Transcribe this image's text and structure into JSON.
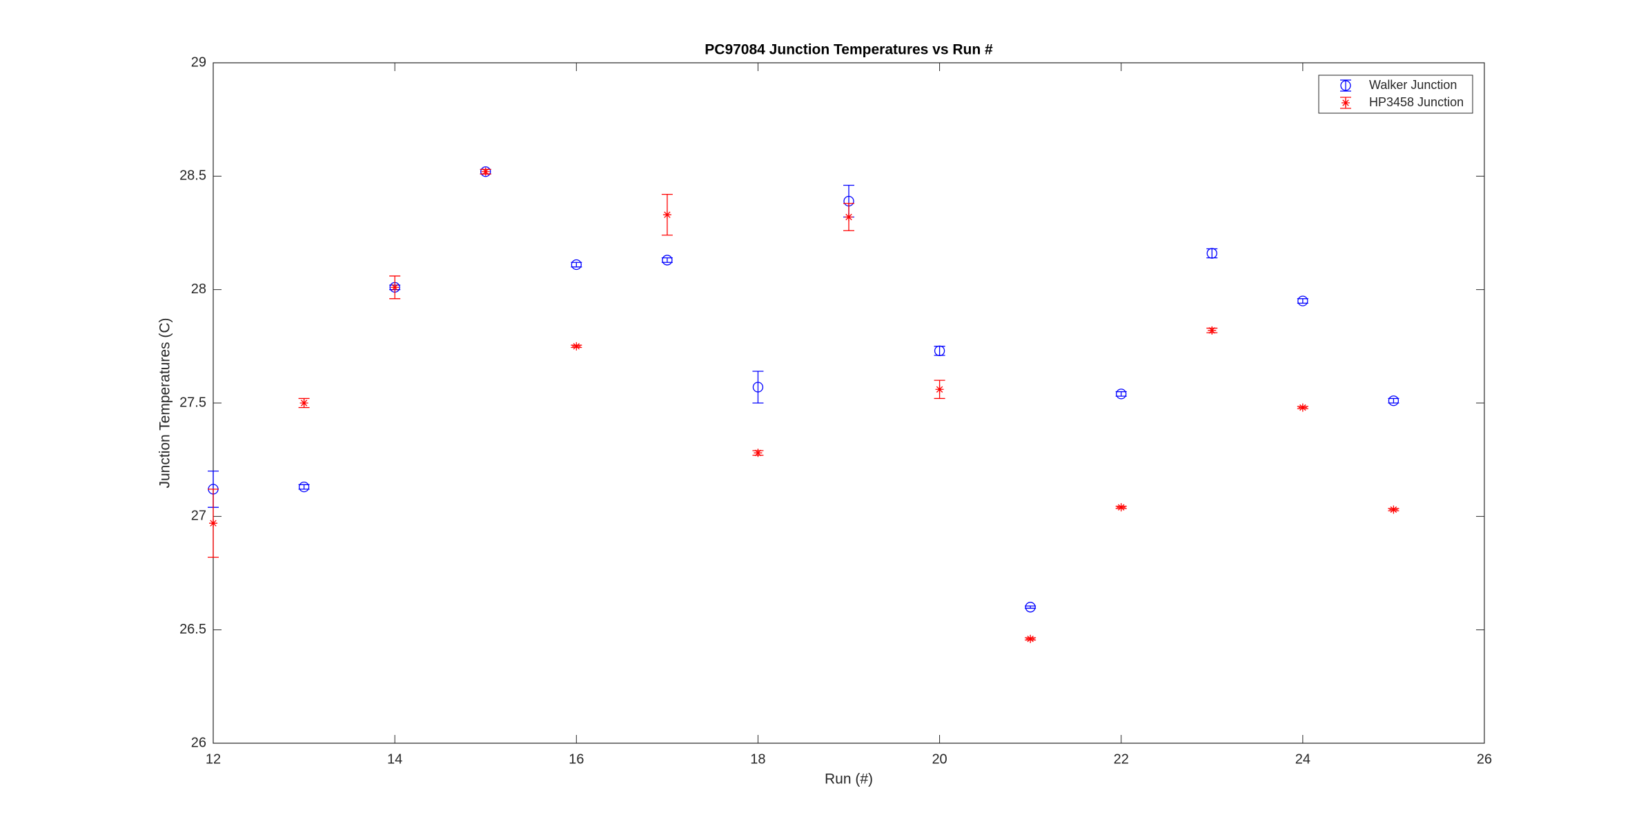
{
  "chart_data": {
    "type": "scatter",
    "title": "PC97084 Junction Temperatures vs Run #",
    "x_label": "Run (#)",
    "y_label": "Junction Temperatures (C)",
    "x": [
      12,
      13,
      14,
      15,
      16,
      17,
      18,
      19,
      20,
      21,
      22,
      23,
      24,
      25
    ],
    "series": [
      {
        "name": "Walker Junction",
        "color": "#0000ff",
        "marker": "circle",
        "values": [
          27.12,
          27.13,
          28.01,
          28.52,
          28.11,
          28.13,
          27.57,
          28.39,
          27.73,
          26.6,
          27.54,
          28.16,
          27.95,
          27.51
        ],
        "errors": [
          0.08,
          0.01,
          0.01,
          0.01,
          0.01,
          0.01,
          0.07,
          0.07,
          0.02,
          0.005,
          0.01,
          0.02,
          0.01,
          0.01
        ]
      },
      {
        "name": "HP3458 Junction",
        "color": "#ff0000",
        "marker": "star",
        "values": [
          26.97,
          27.5,
          28.01,
          28.52,
          27.75,
          28.33,
          27.28,
          28.32,
          27.56,
          26.46,
          27.04,
          27.82,
          27.48,
          27.03
        ],
        "errors": [
          0.15,
          0.02,
          0.05,
          0.01,
          0.005,
          0.09,
          0.01,
          0.06,
          0.04,
          0.005,
          0.005,
          0.01,
          0.005,
          0.005
        ]
      }
    ],
    "xlim": [
      12,
      26
    ],
    "ylim": [
      26,
      29
    ],
    "xticks": [
      12,
      14,
      16,
      18,
      20,
      22,
      24,
      26
    ],
    "yticks": [
      26,
      26.5,
      27,
      27.5,
      28,
      28.5,
      29
    ],
    "grid": false,
    "legend": "northeast"
  }
}
